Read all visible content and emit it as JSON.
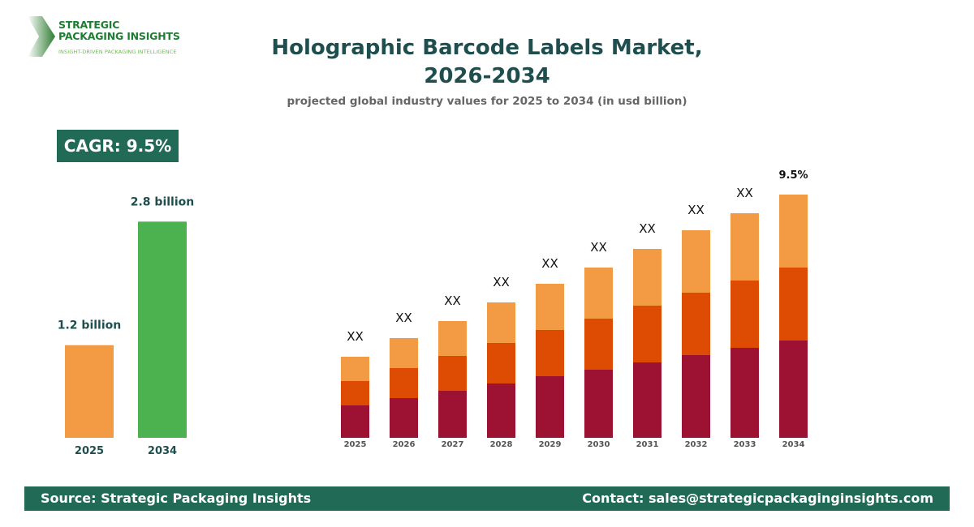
{
  "logo": {
    "line1": "STRATEGIC",
    "line2": "PACKAGING INSIGHTS",
    "tagline": "INSIGHT-DRIVEN PACKAGING INTELLIGENCE"
  },
  "header": {
    "title_line1": "Holographic Barcode Labels Market,",
    "title_line2": "2026-2034",
    "subtitle": "projected global industry values for 2025 to 2034 (in usd billion)"
  },
  "cagr_badge": "CAGR: 9.5%",
  "footer": {
    "source": "Source: Strategic Packaging Insights",
    "contact": "Contact: sales@strategicpackaginginsights.com"
  },
  "colors": {
    "brand": "#216a55",
    "title": "#1f4e4e",
    "orange": "#f39a45",
    "red_orange": "#de4b02",
    "maroon": "#9d1233",
    "green": "#4cb24f"
  },
  "chart_data": [
    {
      "type": "bar",
      "categories": [
        "2025",
        "2034"
      ],
      "values": [
        1.2,
        2.8
      ],
      "data_labels": [
        "1.2 billion",
        "2.8 billion"
      ],
      "colors": [
        "#f39a45",
        "#4cb24f"
      ],
      "ylim": [
        0,
        3.5
      ]
    },
    {
      "type": "bar",
      "stacked": true,
      "categories": [
        "2025",
        "2026",
        "2027",
        "2028",
        "2029",
        "2030",
        "2031",
        "2032",
        "2033",
        "2034"
      ],
      "series": [
        {
          "color": "#9d1233",
          "values": [
            40,
            49,
            58,
            67,
            76,
            84,
            93,
            102,
            111,
            120
          ]
        },
        {
          "color": "#de4b02",
          "values": [
            30,
            37,
            43,
            50,
            57,
            63,
            70,
            77,
            83,
            90
          ]
        },
        {
          "color": "#f39a45",
          "values": [
            30,
            37,
            43,
            50,
            57,
            63,
            70,
            77,
            83,
            90
          ]
        }
      ],
      "data_labels": [
        "XX",
        "XX",
        "XX",
        "XX",
        "XX",
        "XX",
        "XX",
        "XX",
        "XX",
        "9.5%"
      ],
      "ylim": [
        0,
        300
      ],
      "grid": false,
      "legend": "none"
    }
  ]
}
